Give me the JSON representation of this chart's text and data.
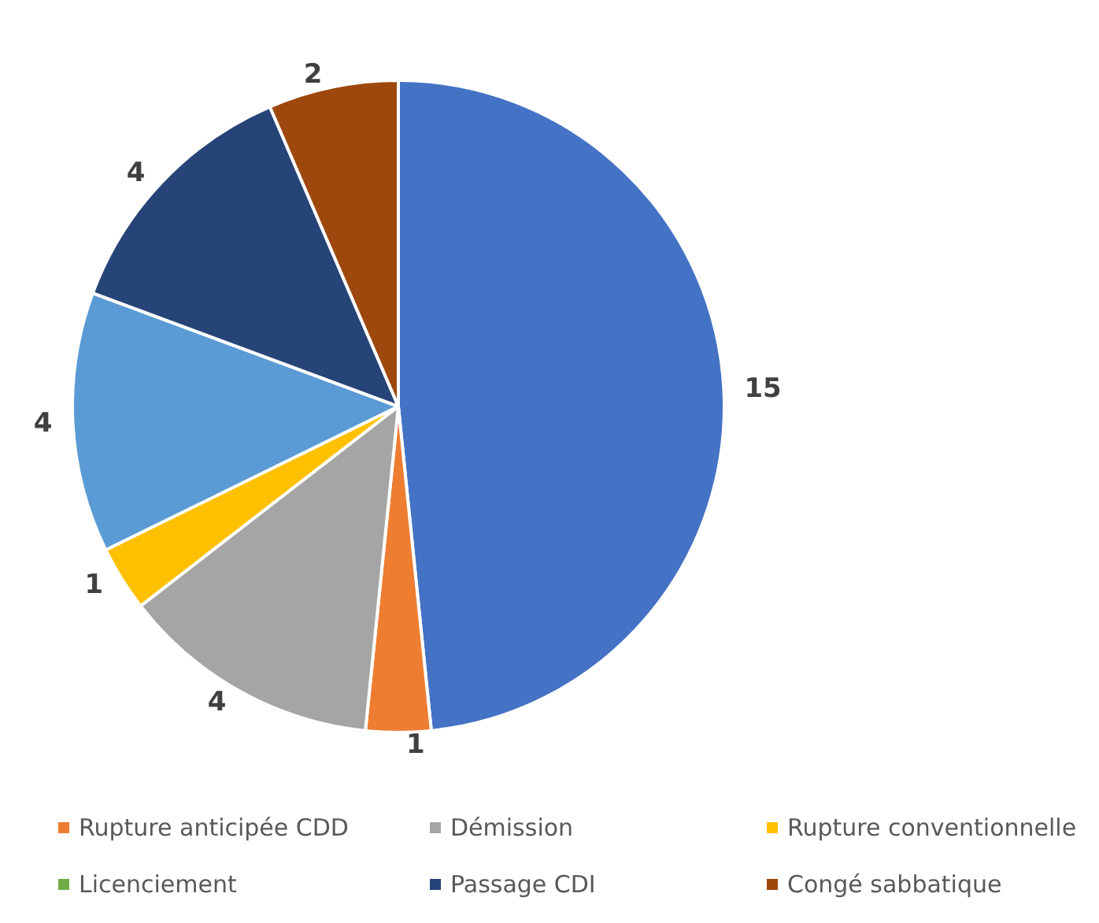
{
  "chart_data": {
    "type": "pie",
    "categories": [
      null,
      "Rupture anticipée CDD",
      "Démission",
      "Rupture conventionnelle",
      null,
      "Licenciement",
      "Passage CDI",
      "Congé sabbatique"
    ],
    "values": [
      15,
      1,
      4,
      1,
      4,
      0,
      4,
      2
    ],
    "colors": [
      "#4472c4",
      "#ed7d31",
      "#a5a5a5",
      "#ffc000",
      "#5b9bd5",
      "#70ad47",
      "#264478",
      "#9e480e"
    ],
    "value_labels": [
      "15",
      "1",
      "4",
      "1",
      "4",
      null,
      "4",
      "2"
    ],
    "legend": "bottom"
  }
}
